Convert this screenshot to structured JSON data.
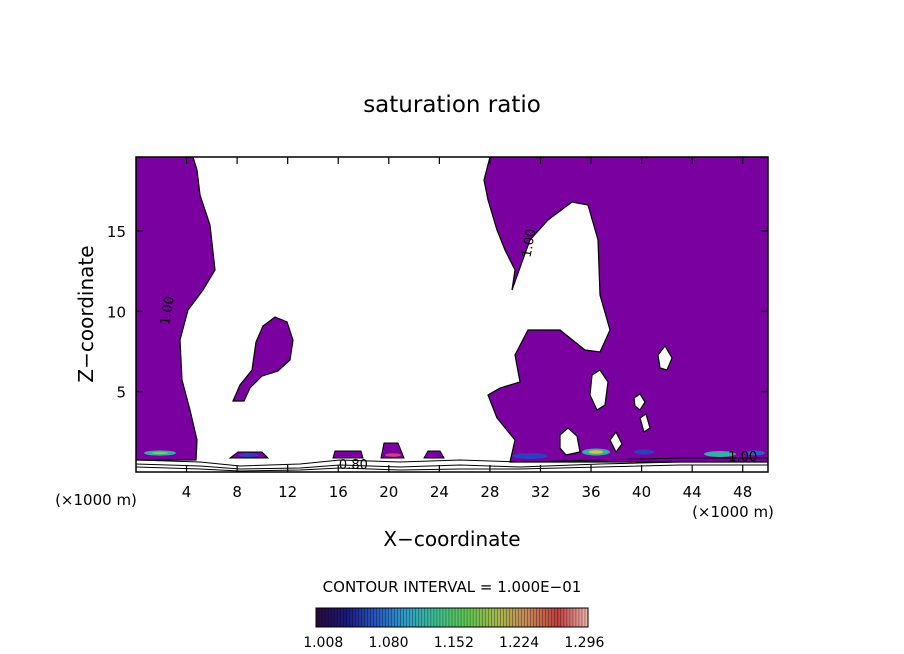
{
  "chart_data": {
    "type": "heatmap",
    "title": "saturation ratio",
    "xlabel": "X−coordinate",
    "ylabel": "Z−coordinate",
    "x_unit_left": "(×1000 m)",
    "x_unit_right": "(×1000 m)",
    "xlim": [
      0,
      50
    ],
    "ylim": [
      0,
      19.6
    ],
    "x_ticks": [
      4,
      8,
      12,
      16,
      20,
      24,
      28,
      32,
      36,
      40,
      44,
      48
    ],
    "y_ticks": [
      5,
      10,
      15
    ],
    "contour_labels": [
      {
        "text": "1.00",
        "x": 2.8,
        "y": 10.0
      },
      {
        "text": "1.00",
        "x": 31.4,
        "y": 14.2
      },
      {
        "text": "0.80",
        "x": 17.2,
        "y": 0.5
      },
      {
        "text": "1.00",
        "x": 48.0,
        "y": 1.0
      }
    ],
    "contour_interval_text": "CONTOUR INTERVAL = 1.000E−01",
    "colorbar": {
      "tick_labels": [
        "1.008",
        "1.080",
        "1.152",
        "1.224",
        "1.296"
      ],
      "range": [
        1.0,
        1.3
      ]
    },
    "colors": {
      "fill": "#7b00a0",
      "cb_stops": [
        "#2a0a3a",
        "#1a1a7a",
        "#2858c0",
        "#30a0c8",
        "#40c090",
        "#60c850",
        "#a8b850",
        "#c88858",
        "#c04040",
        "#f0b8b0"
      ]
    }
  }
}
